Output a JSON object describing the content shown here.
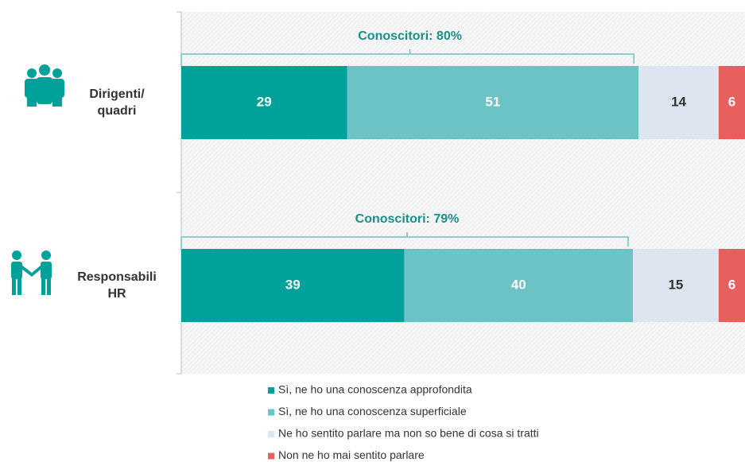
{
  "chart_data": {
    "type": "stacked-bar",
    "categories": [
      "Dirigenti/\nquadri",
      "Responsabili\nHR"
    ],
    "annotations": [
      "Conoscitori: 80%",
      "Conoscitori: 79%"
    ],
    "series": [
      {
        "name": "Sì, ne ho una conoscenza approfondita",
        "color": "#00a19a",
        "values": [
          29,
          39
        ]
      },
      {
        "name": "Sì, ne ho una conoscenza superficiale",
        "color": "#6cc3c6",
        "values": [
          51,
          40
        ]
      },
      {
        "name": "Ne ho sentito parlare ma non so bene di cosa si tratti",
        "color": "#dde6f0",
        "values": [
          14,
          15
        ]
      },
      {
        "name": "Non ne ho mai sentito parlare",
        "color": "#e8605e",
        "values": [
          6,
          6
        ]
      }
    ]
  }
}
